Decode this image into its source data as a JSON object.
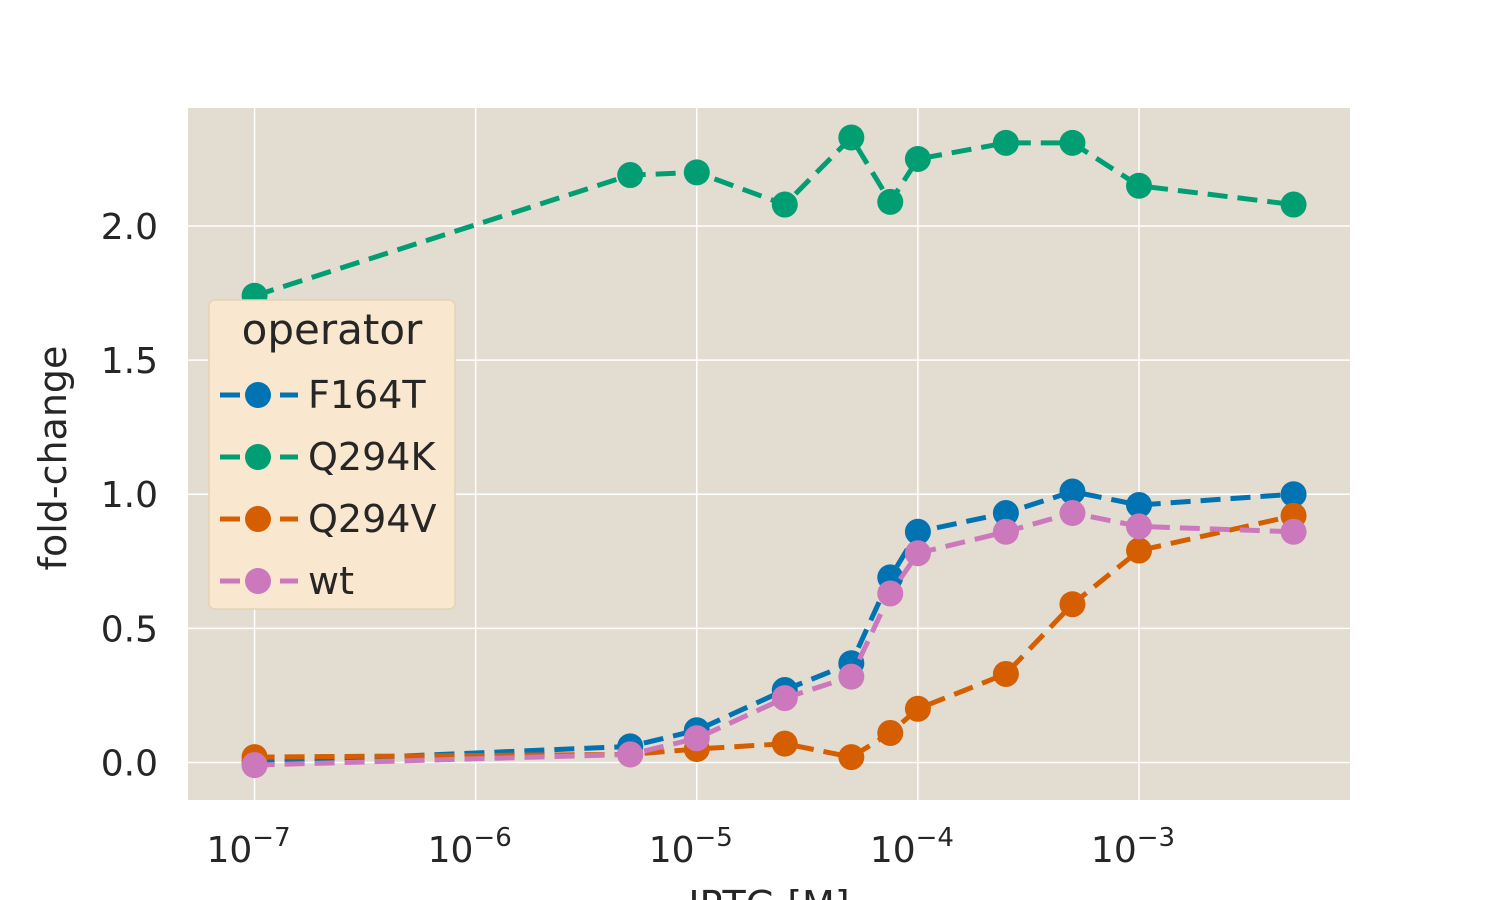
{
  "chart_data": {
    "type": "line",
    "title": "",
    "xlabel": "IPTG [M]",
    "ylabel": "fold-change",
    "xscale": "log",
    "xlim": [
      5e-08,
      0.009
    ],
    "ylim": [
      -0.14,
      2.44
    ],
    "grid": true,
    "x_ticks": [
      {
        "value": 1e-07,
        "base": "10",
        "exp": "−7"
      },
      {
        "value": 1e-06,
        "base": "10",
        "exp": "−6"
      },
      {
        "value": 1e-05,
        "base": "10",
        "exp": "−5"
      },
      {
        "value": 0.0001,
        "base": "10",
        "exp": "−4"
      },
      {
        "value": 0.001,
        "base": "10",
        "exp": "−3"
      }
    ],
    "y_ticks": [
      {
        "value": 0.0,
        "label": "0.0"
      },
      {
        "value": 0.5,
        "label": "0.5"
      },
      {
        "value": 1.0,
        "label": "1.0"
      },
      {
        "value": 1.5,
        "label": "1.5"
      },
      {
        "value": 2.0,
        "label": "2.0"
      }
    ],
    "legend": {
      "title": "operator",
      "position": "center-left"
    },
    "x": [
      1e-07,
      5e-06,
      1e-05,
      2.5e-05,
      5e-05,
      7.5e-05,
      0.0001,
      0.00025,
      0.0005,
      0.001,
      0.005
    ],
    "series": [
      {
        "name": "F164T",
        "color": "#0173b2",
        "values": [
          0.0,
          0.06,
          0.12,
          0.27,
          0.37,
          0.69,
          0.86,
          0.93,
          1.01,
          0.96,
          1.0
        ]
      },
      {
        "name": "Q294K",
        "color": "#029e73",
        "values": [
          1.74,
          2.19,
          2.2,
          2.08,
          2.33,
          2.09,
          2.25,
          2.31,
          2.31,
          2.15,
          2.08
        ]
      },
      {
        "name": "Q294V",
        "color": "#d55e00",
        "values": [
          0.02,
          0.03,
          0.05,
          0.07,
          0.02,
          0.11,
          0.2,
          0.33,
          0.59,
          0.79,
          0.92
        ]
      },
      {
        "name": "wt",
        "color": "#cc78bc",
        "values": [
          -0.01,
          0.03,
          0.09,
          0.24,
          0.32,
          0.63,
          0.78,
          0.86,
          0.93,
          0.88,
          0.86
        ]
      }
    ]
  },
  "colors": {
    "plot_background": "#e3dcd0",
    "grid": "#ffffff",
    "legend_background": "#f9e8cf"
  }
}
